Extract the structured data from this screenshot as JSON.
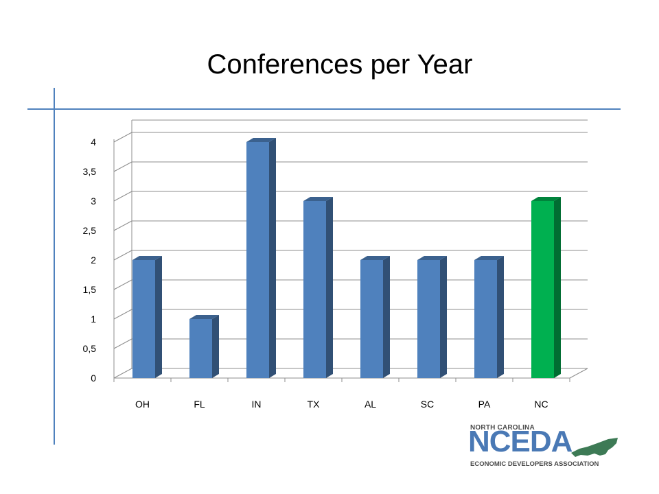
{
  "chart_data": {
    "type": "bar",
    "title": "Conferences per Year",
    "categories": [
      "OH",
      "FL",
      "IN",
      "TX",
      "AL",
      "SC",
      "PA",
      "NC"
    ],
    "values": [
      2,
      1,
      4,
      3,
      2,
      2,
      2,
      3
    ],
    "y_ticks": [
      "0",
      "0,5",
      "1",
      "1,5",
      "2",
      "2,5",
      "3",
      "3,5",
      "4"
    ],
    "ylim": [
      0,
      4
    ],
    "grid": true,
    "legend": "none",
    "bar_color": "#4f81bd",
    "highlight_color": "#00b050",
    "highlight_category": "NC"
  },
  "logo": {
    "top_text": "NORTH CAROLINA",
    "main_text": "NCEDA",
    "bottom_text": "ECONOMIC DEVELOPERS ASSOCIATION",
    "color": "#4a79b5",
    "state_color": "#3d7a55"
  }
}
